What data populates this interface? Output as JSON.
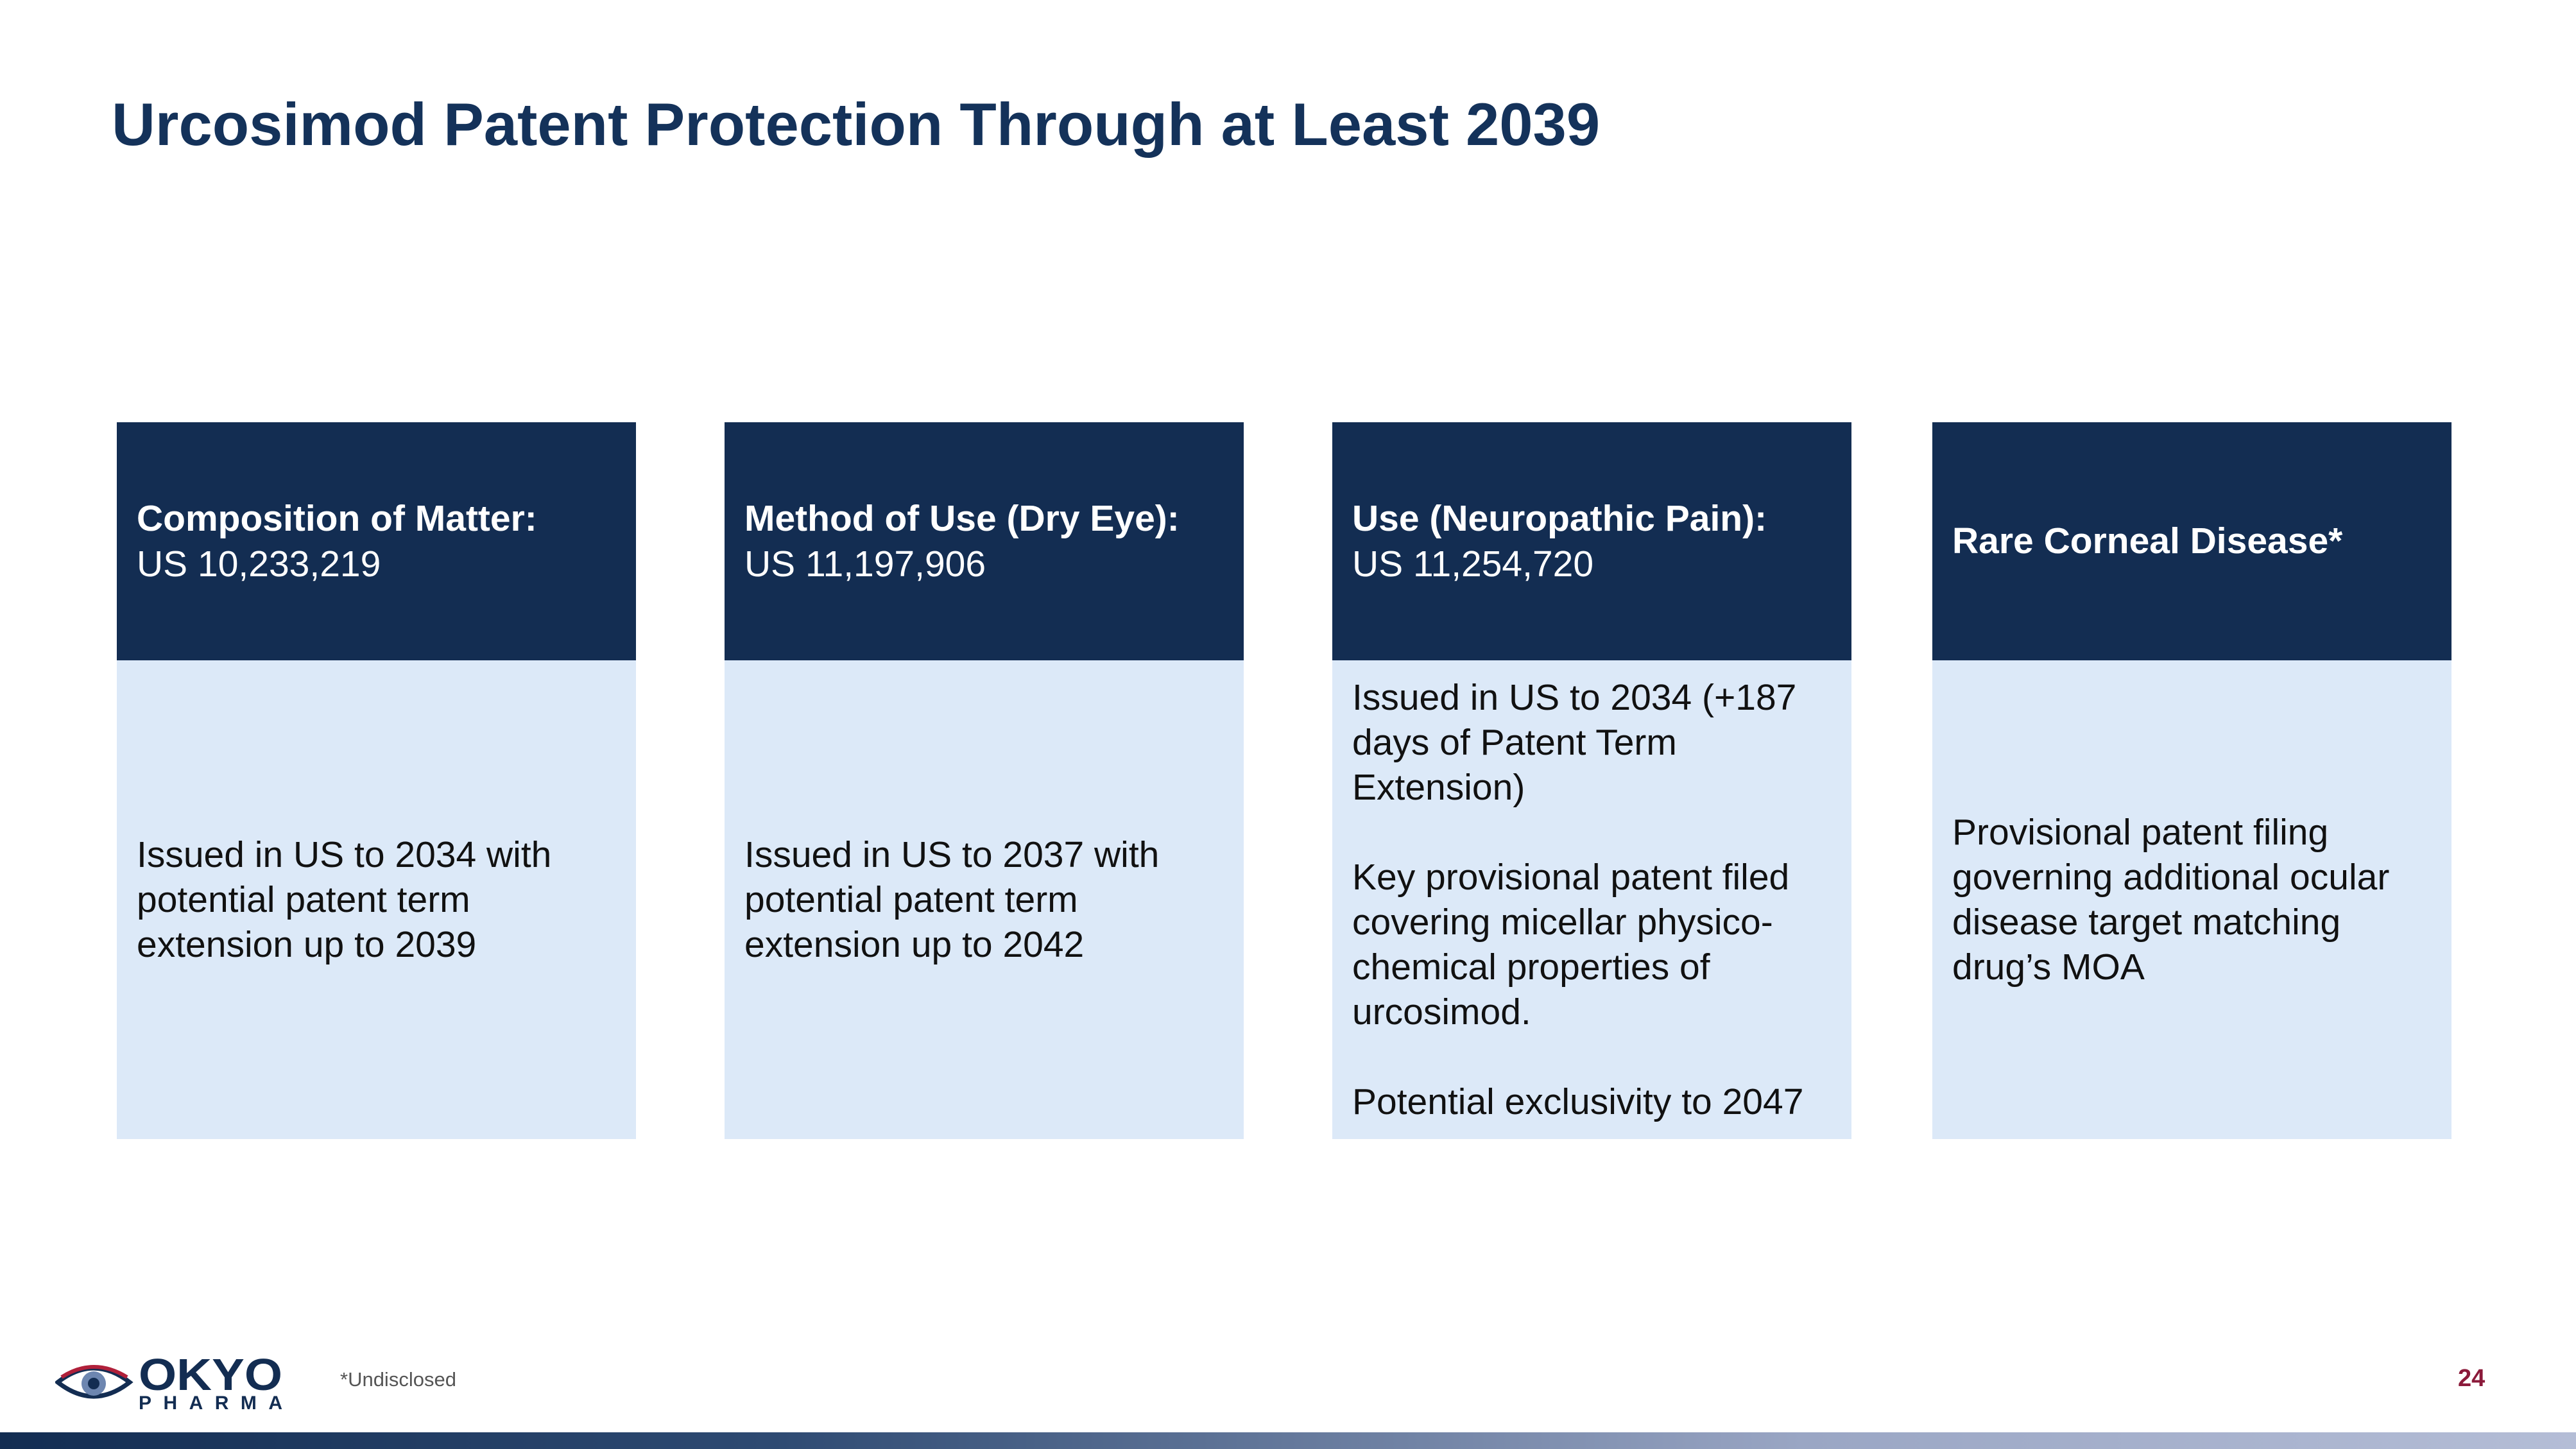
{
  "title": "Urcosimod Patent Protection Through at Least 2039",
  "cards": [
    {
      "heading": "Composition of Matter:",
      "patent": "US 10,233,219",
      "body": [
        "Issued in US to 2034 with potential patent term extension up to 2039"
      ]
    },
    {
      "heading": "Method of Use (Dry Eye):",
      "patent": "US 11,197,906",
      "body": [
        "Issued in US to 2037 with potential patent term extension up to 2042"
      ]
    },
    {
      "heading": "Use (Neuropathic Pain):",
      "patent": "US 11,254,720",
      "body": [
        "Issued in US to 2034 (+187 days of Patent Term Extension)",
        "Key provisional patent filed covering micellar physico-chemical properties of urcosimod.",
        "Potential exclusivity to 2047"
      ]
    },
    {
      "heading": "Rare Corneal Disease*",
      "body": [
        "Provisional patent filing governing additional ocular disease target matching drug’s MOA"
      ]
    }
  ],
  "footer": {
    "logo_name": "OKYO",
    "logo_sub": "PHARMA",
    "footnote": "*Undisclosed",
    "page_number": "24"
  }
}
